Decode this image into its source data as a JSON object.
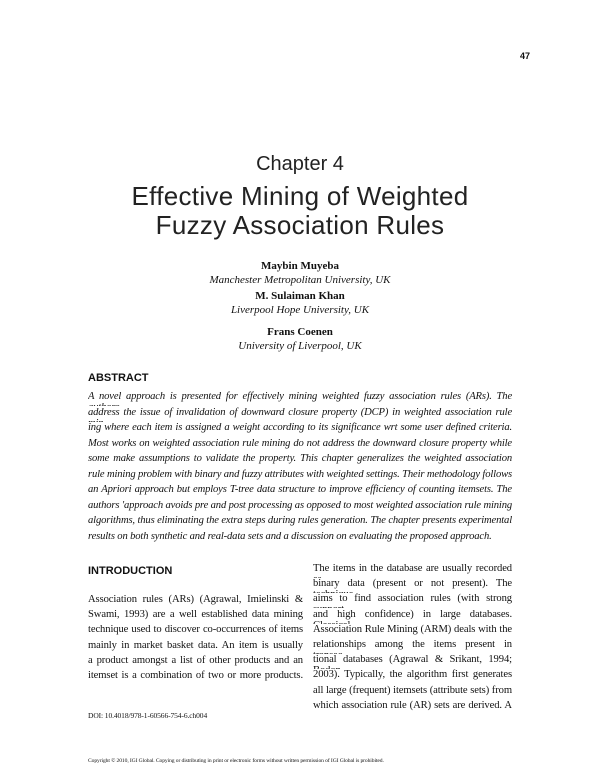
{
  "page_number": "47",
  "chapter": "Chapter 4",
  "title_lines": [
    "Effective Mining of Weighted",
    "Fuzzy Association Rules"
  ],
  "authors": [
    {
      "name": "Maybin Muyeba",
      "affiliation": "Manchester Metropolitan University, UK"
    },
    {
      "name": "M. Sulaiman Khan",
      "affiliation": "Liverpool Hope University, UK"
    },
    {
      "name": "Frans Coenen",
      "affiliation": "University of Liverpool, UK"
    }
  ],
  "abstract": {
    "heading": "ABSTRACT",
    "lines": [
      "A novel approach is presented for effectively mining weighted fuzzy association rules (ARs). The authors",
      "address the issue of invalidation of downward closure property (DCP) in weighted association rule min-",
      "ing where each item is assigned a weight according to its significance wrt some user defined criteria.",
      "Most works on weighted association rule mining do not address the downward closure property while",
      "some make assumptions to validate the property. This chapter generalizes the weighted association",
      "rule mining problem with binary and fuzzy attributes with weighted settings. Their methodology follows",
      "an Apriori approach but employs T-tree data structure to improve efficiency of counting itemsets. The",
      "authors 'approach avoids pre and post processing as opposed to most weighted association rule mining",
      "algorithms, thus eliminating the extra steps during rules generation. The chapter presents experimental",
      "results on both synthetic and real-data sets and a discussion on evaluating the proposed approach."
    ]
  },
  "introduction": {
    "heading": "INTRODUCTION",
    "left_lines": [
      "Association rules (ARs) (Agrawal, Imielinski &",
      "Swami, 1993) are a well established data mining",
      "technique used to discover co-occurrences of items",
      "mainly in market basket data. An item is usually",
      "a product amongst a list of other products and an",
      "itemset is a combination of two or more products."
    ],
    "right_lines": [
      "The items in the database are usually recorded as",
      "binary data (present or not present). The technique",
      "aims to find association rules (with strong support",
      "and high confidence) in large databases. Classical",
      "Association Rule Mining (ARM) deals with the",
      "relationships among the items present in transac-",
      "tional databases (Agrawal & Srikant, 1994; Bodon,",
      "2003). Typically, the algorithm first generates",
      "all large (frequent) itemsets (attribute sets) from",
      "which association rule (AR) sets are derived. A"
    ]
  },
  "doi": "DOI: 10.4018/978-1-60566-754-6.ch004",
  "copyright": "Copyright © 2010, IGI Global. Copying or distributing in print or electronic forms without written permission of IGI Global is prohibited."
}
